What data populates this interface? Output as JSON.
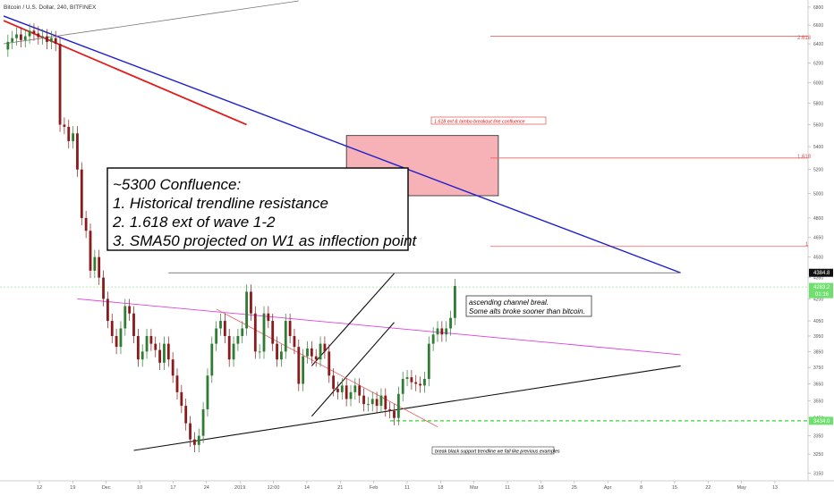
{
  "header": {
    "symbol_line": "Bitcoin / U.S. Dollar, 240, BITFINEX"
  },
  "colors": {
    "up": "#2e7d32",
    "down": "#8b1a1a",
    "blue_trend": "#1f1fcf",
    "red_trend": "#e21b1b",
    "pink_line": "#e040e0",
    "fib_line": "#f06060",
    "box_fill": "#f7b2b8",
    "green_dashed": "#39d339",
    "price_tag_dark": "#111111",
    "price_tag_green": "#6fe06f"
  },
  "annotations": {
    "confluence_title": "~5300 Confluence:",
    "confluence_line1": "1. Historical trendline resistance",
    "confluence_line2": "2. 1.618 ext of wave 1-2",
    "confluence_line3": "3. SMA50 projected on W1 as inflection point",
    "channel_note_line1": "ascending channel breal.",
    "channel_note_line2": "Some alts broke sooner than bitcoin.",
    "box_label": "1.618 ext & lambo breakout line confluence",
    "support_note": "break black support trendline we fall like previous examples",
    "fib_2618": "2.618",
    "fib_1618": "1.618",
    "fib_1": "1"
  },
  "price_tags": {
    "blue_line": "4384.8",
    "current": "4283.2",
    "current_sub": "01:16",
    "support": "3434.0"
  },
  "chart_data": {
    "type": "line",
    "title": "Bitcoin / U.S. Dollar, 240, BITFINEX",
    "xlabel": "",
    "ylabel": "",
    "x_ticks": [
      "12",
      "19",
      "Dec",
      "10",
      "17",
      "24",
      "2019",
      "12:00",
      "14",
      "21",
      "Feb",
      "11",
      "18",
      "Mar",
      "11",
      "18",
      "25",
      "Apr",
      "8",
      "15",
      "22",
      "May",
      "13"
    ],
    "y_ticks": [
      3150,
      3250,
      3350,
      3450,
      3550,
      3650,
      3750,
      3850,
      3950,
      4050,
      4200,
      4350,
      4500,
      4650,
      4800,
      5000,
      5200,
      5400,
      5600,
      5800,
      6000,
      6200,
      6400,
      6600,
      6800
    ],
    "ylim": [
      3110,
      6880
    ],
    "log_scale": true,
    "series": [
      {
        "values": [
          6340,
          6420,
          6460,
          6500,
          6440,
          6480,
          6540,
          6510,
          6470,
          6480,
          6420,
          6460,
          6400,
          5600,
          5580,
          5450,
          5520,
          5200,
          4800,
          4700,
          4400,
          4500,
          4350,
          4200,
          4050,
          3950,
          3880,
          4000,
          4150,
          4100,
          3950,
          3800,
          3850,
          3950,
          3900,
          3860,
          3780,
          3900,
          3800,
          3700,
          3600,
          3520,
          3420,
          3330,
          3300,
          3350,
          3500,
          3700,
          3900,
          4000,
          4050,
          3950,
          3800,
          3900,
          3950,
          4000,
          4250,
          4100,
          3850,
          3850,
          4100,
          4050,
          3900,
          3800,
          3850,
          4050,
          3950,
          3880,
          3650,
          3820,
          3870,
          3820,
          3800,
          3900,
          3850,
          3700,
          3620,
          3600,
          3640,
          3560,
          3600,
          3640,
          3580,
          3530,
          3530,
          3560,
          3520,
          3580,
          3500,
          3490,
          3450,
          3590,
          3680,
          3690,
          3660,
          3650,
          3640,
          3680,
          3900,
          3960,
          4000,
          3960,
          4000,
          4070,
          4290
        ]
      }
    ],
    "trendlines": [
      {
        "name": "blue",
        "from": [
          0,
          6700
        ],
        "to": [
          156,
          4384.8
        ]
      },
      {
        "name": "red",
        "from": [
          0,
          6650
        ],
        "to": [
          56,
          5600
        ]
      },
      {
        "name": "grey",
        "from": [
          0,
          6400
        ],
        "to": [
          68,
          6870
        ]
      },
      {
        "name": "black support",
        "from": [
          30,
          3270
        ],
        "to": [
          156,
          3760
        ]
      },
      {
        "name": "pink",
        "from": [
          17,
          4200
        ],
        "to": [
          156,
          3830
        ]
      },
      {
        "name": "channel upper",
        "from": [
          71,
          3760
        ],
        "to": [
          90,
          4380
        ]
      },
      {
        "name": "channel lower",
        "from": [
          71,
          3460
        ],
        "to": [
          90,
          4040
        ]
      },
      {
        "name": "red descending",
        "from": [
          49,
          4130
        ],
        "to": [
          100,
          3400
        ]
      },
      {
        "name": "dark horizontal",
        "from": [
          38,
          4384.8
        ],
        "to": [
          156,
          4384.8
        ]
      }
    ],
    "fib_levels": [
      {
        "label": "2.618",
        "value": 6480
      },
      {
        "label": "1.618",
        "value": 5300
      },
      {
        "label": "1",
        "value": 4580
      }
    ],
    "target_box": {
      "x": [
        79,
        114
      ],
      "y": [
        4980,
        5500
      ]
    },
    "horizontal_levels": [
      {
        "name": "support",
        "value": 3434
      },
      {
        "name": "current",
        "value": 4283.2
      }
    ]
  }
}
